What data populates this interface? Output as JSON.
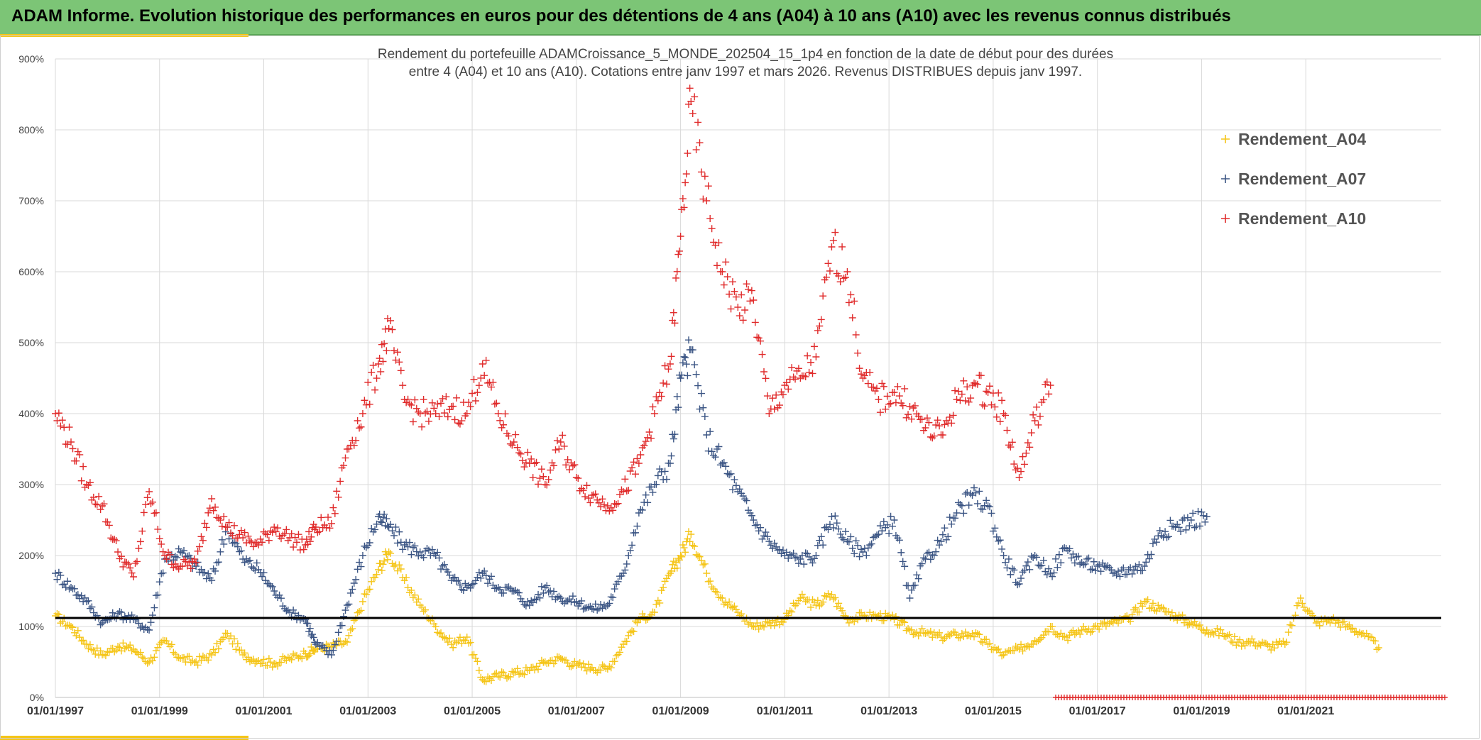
{
  "banner": {
    "title": "ADAM Informe. Evolution historique des performances en euros pour des détentions de 4 ans (A04) à 10 ans (A10) avec les revenus connus distribués"
  },
  "colors": {
    "banner_bg": "#7cc576",
    "accent": "#f5c518",
    "A04": "#f5c518",
    "A07": "#3b5584",
    "A10": "#e02b2b",
    "reference_line": "#000000"
  },
  "chart_data": {
    "type": "scatter",
    "title": "Rendement du portefeuille ADAMCroissance_5_MONDE_202504_15_1p4  en fonction de la date de début pour des durées",
    "subtitle": "entre 4 (A04) et 10 ans (A10). Cotations entre janv 1997 et mars 2026. Revenus DISTRIBUES depuis janv 1997.",
    "xlabel": "",
    "ylabel": "",
    "x_ticks": [
      "01/01/1997",
      "01/01/1999",
      "01/01/2001",
      "01/01/2003",
      "01/01/2005",
      "01/01/2007",
      "01/01/2009",
      "01/01/2011",
      "01/01/2013",
      "01/01/2015",
      "01/01/2017",
      "01/01/2019",
      "01/01/2021"
    ],
    "y_ticks": [
      "0%",
      "100%",
      "200%",
      "300%",
      "400%",
      "500%",
      "600%",
      "700%",
      "800%",
      "900%"
    ],
    "xlim": [
      "1997-01-01",
      "2023-08-01"
    ],
    "ylim": [
      0,
      900
    ],
    "grid": true,
    "legend_position": "top-right",
    "reference_line": 112,
    "series": [
      {
        "name": "Rendement_A04",
        "color": "#f5c518",
        "x": [
          1997.0,
          1997.3,
          1997.6,
          1997.9,
          1998.2,
          1998.5,
          1998.8,
          1999.1,
          1999.4,
          1999.7,
          2000.0,
          2000.3,
          2000.6,
          2000.9,
          2001.2,
          2001.5,
          2001.8,
          2002.0,
          2002.3,
          2002.6,
          2002.9,
          2003.2,
          2003.4,
          2003.7,
          2004.0,
          2004.3,
          2004.6,
          2004.9,
          2005.2,
          2005.5,
          2005.8,
          2006.1,
          2006.4,
          2006.7,
          2007.0,
          2007.3,
          2007.6,
          2007.9,
          2008.2,
          2008.5,
          2008.8,
          2009.0,
          2009.2,
          2009.5,
          2009.8,
          2010.1,
          2010.4,
          2010.7,
          2011.0,
          2011.3,
          2011.6,
          2011.9,
          2012.2,
          2012.5,
          2012.8,
          2013.1,
          2013.4,
          2013.7,
          2014.0,
          2014.3,
          2014.6,
          2014.9,
          2015.2,
          2015.5,
          2015.8,
          2016.1,
          2016.4,
          2016.7,
          2017.0,
          2017.3,
          2017.6,
          2017.9,
          2018.2,
          2018.5,
          2018.8,
          2019.1,
          2019.4,
          2019.7,
          2020.0,
          2020.3,
          2020.6,
          2020.9,
          2021.2,
          2021.5,
          2021.8,
          2022.1,
          2022.4
        ],
        "values": [
          115,
          100,
          75,
          60,
          72,
          68,
          50,
          80,
          55,
          50,
          60,
          90,
          60,
          52,
          48,
          55,
          62,
          68,
          72,
          78,
          135,
          180,
          205,
          165,
          130,
          100,
          75,
          85,
          25,
          30,
          35,
          38,
          50,
          55,
          45,
          42,
          40,
          75,
          110,
          120,
          175,
          200,
          230,
          175,
          140,
          120,
          100,
          105,
          110,
          140,
          130,
          145,
          110,
          115,
          115,
          110,
          95,
          90,
          85,
          88,
          90,
          75,
          60,
          68,
          80,
          100,
          85,
          95,
          100,
          105,
          110,
          135,
          125,
          115,
          105,
          95,
          90,
          78,
          78,
          72,
          75,
          140,
          105,
          110,
          100,
          90,
          70
        ]
      },
      {
        "name": "Rendement_A07",
        "color": "#3b5584",
        "x": [
          1997.0,
          1997.3,
          1997.6,
          1997.9,
          1998.2,
          1998.5,
          1998.8,
          1999.1,
          1999.4,
          1999.7,
          2000.0,
          2000.3,
          2000.6,
          2000.9,
          2001.2,
          2001.5,
          2001.8,
          2002.0,
          2002.3,
          2002.6,
          2002.9,
          2003.2,
          2003.4,
          2003.7,
          2004.0,
          2004.3,
          2004.6,
          2004.9,
          2005.2,
          2005.5,
          2005.8,
          2006.1,
          2006.4,
          2006.7,
          2007.0,
          2007.3,
          2007.6,
          2007.9,
          2008.2,
          2008.5,
          2008.8,
          2009.0,
          2009.2,
          2009.5,
          2009.8,
          2010.1,
          2010.4,
          2010.7,
          2011.0,
          2011.3,
          2011.6,
          2011.9,
          2012.2,
          2012.5,
          2012.8,
          2013.1,
          2013.4,
          2013.7,
          2014.0,
          2014.3,
          2014.6,
          2014.9,
          2015.2,
          2015.5,
          2015.8,
          2016.1,
          2016.4,
          2016.7,
          2017.0,
          2017.3,
          2017.6,
          2017.9,
          2018.2,
          2018.5,
          2018.8,
          2019.1
        ],
        "values": [
          175,
          155,
          135,
          105,
          118,
          110,
          95,
          195,
          205,
          185,
          165,
          240,
          195,
          180,
          150,
          120,
          110,
          75,
          60,
          130,
          200,
          255,
          240,
          215,
          205,
          200,
          165,
          155,
          175,
          155,
          150,
          130,
          155,
          140,
          135,
          125,
          130,
          175,
          260,
          300,
          330,
          450,
          490,
          370,
          330,
          290,
          250,
          220,
          200,
          195,
          200,
          255,
          220,
          205,
          230,
          250,
          140,
          195,
          220,
          260,
          285,
          270,
          200,
          160,
          200,
          175,
          210,
          190,
          185,
          175,
          180,
          185,
          235,
          240,
          250,
          255
        ]
      },
      {
        "name": "Rendement_A10",
        "color": "#e02b2b",
        "x": [
          1997.0,
          1997.3,
          1997.6,
          1997.9,
          1998.2,
          1998.5,
          1998.8,
          1999.1,
          1999.4,
          1999.7,
          2000.0,
          2000.3,
          2000.6,
          2000.9,
          2001.2,
          2001.5,
          2001.8,
          2002.0,
          2002.3,
          2002.6,
          2002.9,
          2003.2,
          2003.4,
          2003.7,
          2004.0,
          2004.3,
          2004.6,
          2004.9,
          2005.2,
          2005.5,
          2005.8,
          2006.1,
          2006.4,
          2006.7,
          2007.0,
          2007.3,
          2007.6,
          2007.9,
          2008.2,
          2008.5,
          2008.8,
          2009.0,
          2009.2,
          2009.5,
          2009.8,
          2010.1,
          2010.4,
          2010.7,
          2011.0,
          2011.3,
          2011.6,
          2011.9,
          2012.2,
          2012.5,
          2012.8,
          2013.1,
          2013.4,
          2013.7,
          2014.0,
          2014.3,
          2014.6,
          2014.9,
          2015.2,
          2015.5,
          2015.8,
          2016.1
        ],
        "values": [
          400,
          360,
          300,
          270,
          205,
          170,
          290,
          200,
          185,
          190,
          280,
          240,
          225,
          215,
          240,
          225,
          215,
          240,
          245,
          350,
          400,
          470,
          520,
          420,
          400,
          400,
          410,
          400,
          470,
          400,
          360,
          330,
          300,
          360,
          310,
          285,
          270,
          290,
          330,
          400,
          470,
          650,
          840,
          700,
          600,
          550,
          560,
          400,
          440,
          450,
          480,
          635,
          600,
          450,
          420,
          430,
          410,
          380,
          370,
          420,
          440,
          430,
          400,
          310,
          390,
          440
        ]
      }
    ],
    "annotation_band": {
      "x_start": 2016.2,
      "x_end": 2023.7,
      "value": 0,
      "color": "#e02b2b"
    }
  }
}
